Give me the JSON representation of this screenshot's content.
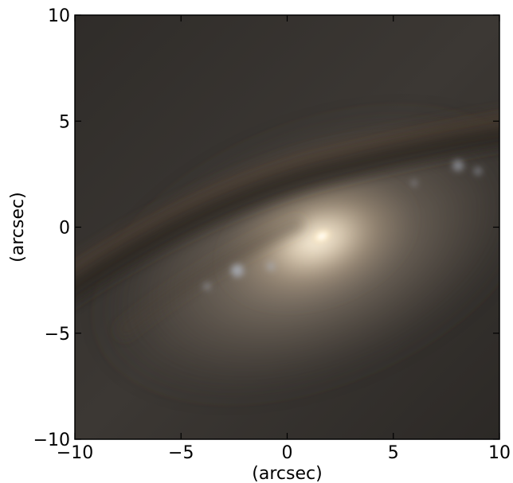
{
  "figure": {
    "xlabel": "(arcsec)",
    "ylabel": "(arcsec)",
    "xlim": [
      -10,
      10
    ],
    "ylim": [
      -10,
      10
    ],
    "x_ticks": [
      {
        "value": -10,
        "label": "−10"
      },
      {
        "value": -5,
        "label": "−5"
      },
      {
        "value": 0,
        "label": "0"
      },
      {
        "value": 5,
        "label": "5"
      },
      {
        "value": 10,
        "label": "10"
      }
    ],
    "y_ticks": [
      {
        "value": -10,
        "label": "−10"
      },
      {
        "value": -5,
        "label": "−5"
      },
      {
        "value": 0,
        "label": "0"
      },
      {
        "value": 5,
        "label": "5"
      },
      {
        "value": 10,
        "label": "10"
      }
    ],
    "image": {
      "subject": "galaxy-with-dust-lane",
      "nucleus_position_arcsec": [
        1.6,
        -0.4
      ],
      "colors": {
        "background": "#35322e",
        "disk_glow": "#7a6e60",
        "nucleus": "#fff4dc",
        "dust_lane": "#2a2520",
        "dust_brown": "#5a4838",
        "star_clusters": "#b4bccb"
      }
    }
  }
}
